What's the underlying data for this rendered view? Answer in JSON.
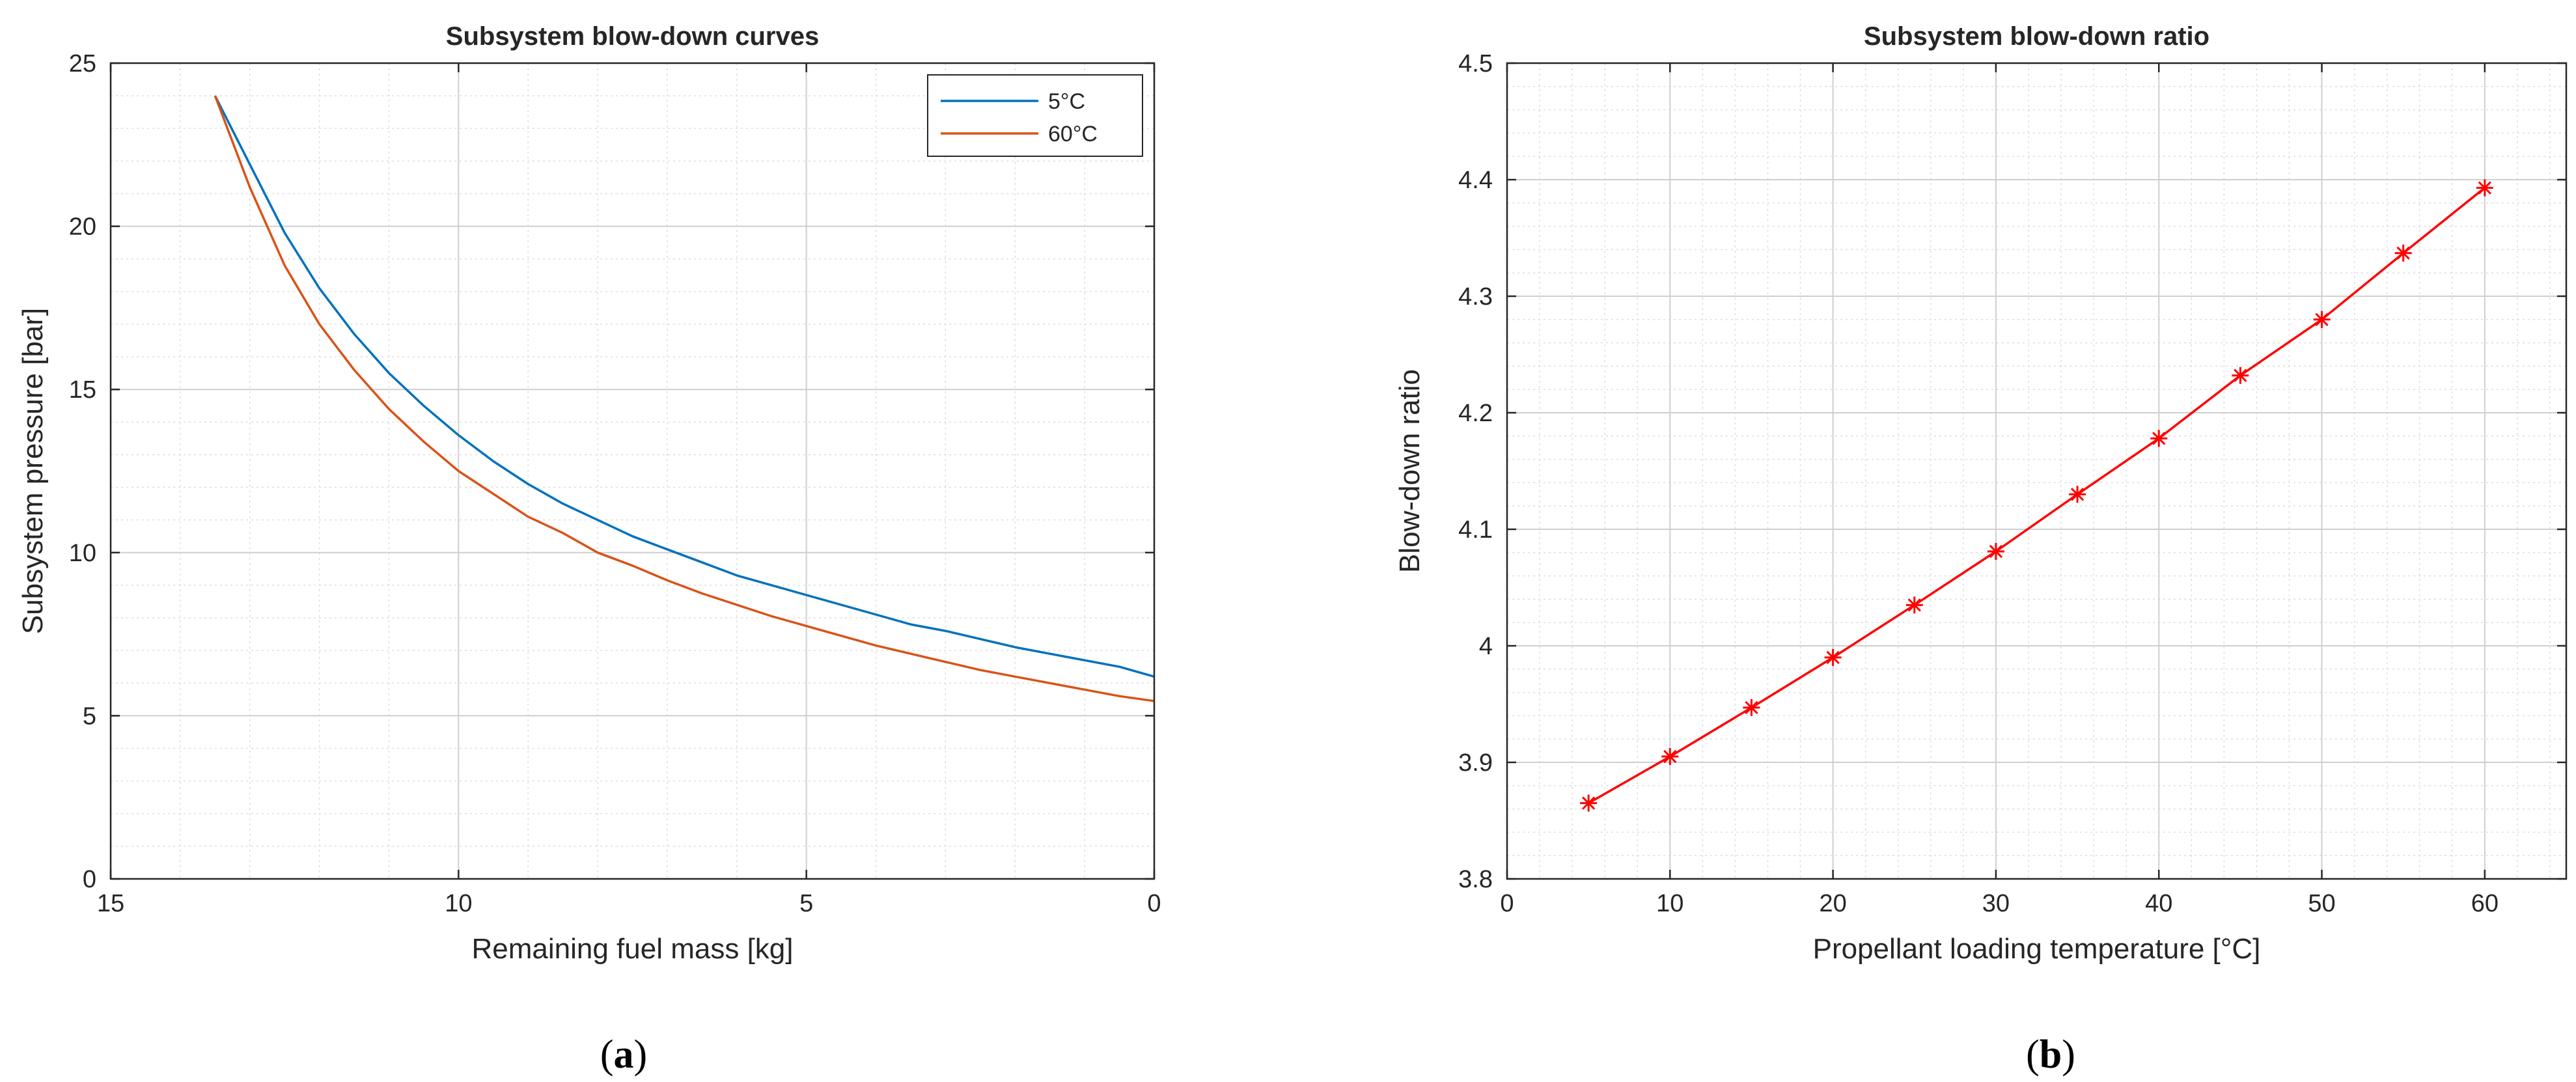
{
  "chart_data": [
    {
      "type": "line",
      "panel_label": "a",
      "title": "Subsystem blow-down curves",
      "xlabel": "Remaining fuel mass [kg]",
      "ylabel": "Subsystem pressure [bar]",
      "xlim": [
        15,
        0
      ],
      "ylim": [
        0,
        25
      ],
      "x_reversed": true,
      "xticks": [
        15,
        10,
        5,
        0
      ],
      "yticks": [
        0,
        5,
        10,
        15,
        20,
        25
      ],
      "grid": true,
      "minor_grid": true,
      "legend_position": "top-right",
      "series": [
        {
          "name": "5°C",
          "color": "#0072BD",
          "x": [
            13.5,
            13.0,
            12.5,
            12.0,
            11.5,
            11.0,
            10.5,
            10.0,
            9.5,
            9.0,
            8.5,
            8.0,
            7.5,
            7.0,
            6.5,
            6.0,
            5.5,
            5.0,
            4.5,
            4.0,
            3.5,
            3.0,
            2.5,
            2.0,
            1.5,
            1.0,
            0.5,
            0.0
          ],
          "y": [
            24.0,
            21.9,
            19.8,
            18.1,
            16.7,
            15.5,
            14.5,
            13.6,
            12.8,
            12.1,
            11.5,
            11.0,
            10.5,
            10.1,
            9.7,
            9.3,
            9.0,
            8.7,
            8.4,
            8.1,
            7.8,
            7.6,
            7.35,
            7.1,
            6.9,
            6.7,
            6.5,
            6.2
          ]
        },
        {
          "name": "60°C",
          "color": "#D95319",
          "x": [
            13.5,
            13.0,
            12.5,
            12.0,
            11.5,
            11.0,
            10.5,
            10.0,
            9.5,
            9.0,
            8.5,
            8.0,
            7.5,
            7.0,
            6.5,
            6.0,
            5.5,
            5.0,
            4.5,
            4.0,
            3.5,
            3.0,
            2.5,
            2.0,
            1.5,
            1.0,
            0.5,
            0.0
          ],
          "y": [
            24.0,
            21.2,
            18.8,
            17.0,
            15.6,
            14.4,
            13.4,
            12.5,
            11.8,
            11.1,
            10.6,
            10.0,
            9.6,
            9.15,
            8.75,
            8.4,
            8.05,
            7.75,
            7.45,
            7.15,
            6.9,
            6.65,
            6.4,
            6.2,
            6.0,
            5.8,
            5.6,
            5.45
          ]
        }
      ]
    },
    {
      "type": "line",
      "panel_label": "b",
      "title": "Subsystem blow-down ratio",
      "xlabel": "Propellant loading temperature [°C]",
      "ylabel": "Blow-down ratio",
      "xlim": [
        0,
        65
      ],
      "ylim": [
        3.8,
        4.5
      ],
      "xticks": [
        0,
        10,
        20,
        30,
        40,
        50,
        60
      ],
      "yticks": [
        3.8,
        3.9,
        4.0,
        4.1,
        4.2,
        4.3,
        4.4,
        4.5
      ],
      "ytick_labels": [
        "3.8",
        "3.9",
        "4",
        "4.1",
        "4.2",
        "4.3",
        "4.4",
        "4.5"
      ],
      "grid": true,
      "minor_grid": true,
      "marker": "asterisk",
      "series": [
        {
          "color": "#FF0000",
          "x": [
            5,
            10,
            15,
            20,
            25,
            30,
            35,
            40,
            45,
            50,
            55,
            60
          ],
          "y": [
            3.865,
            3.905,
            3.947,
            3.99,
            4.035,
            4.081,
            4.13,
            4.178,
            4.232,
            4.28,
            4.337,
            4.393
          ]
        }
      ]
    }
  ]
}
